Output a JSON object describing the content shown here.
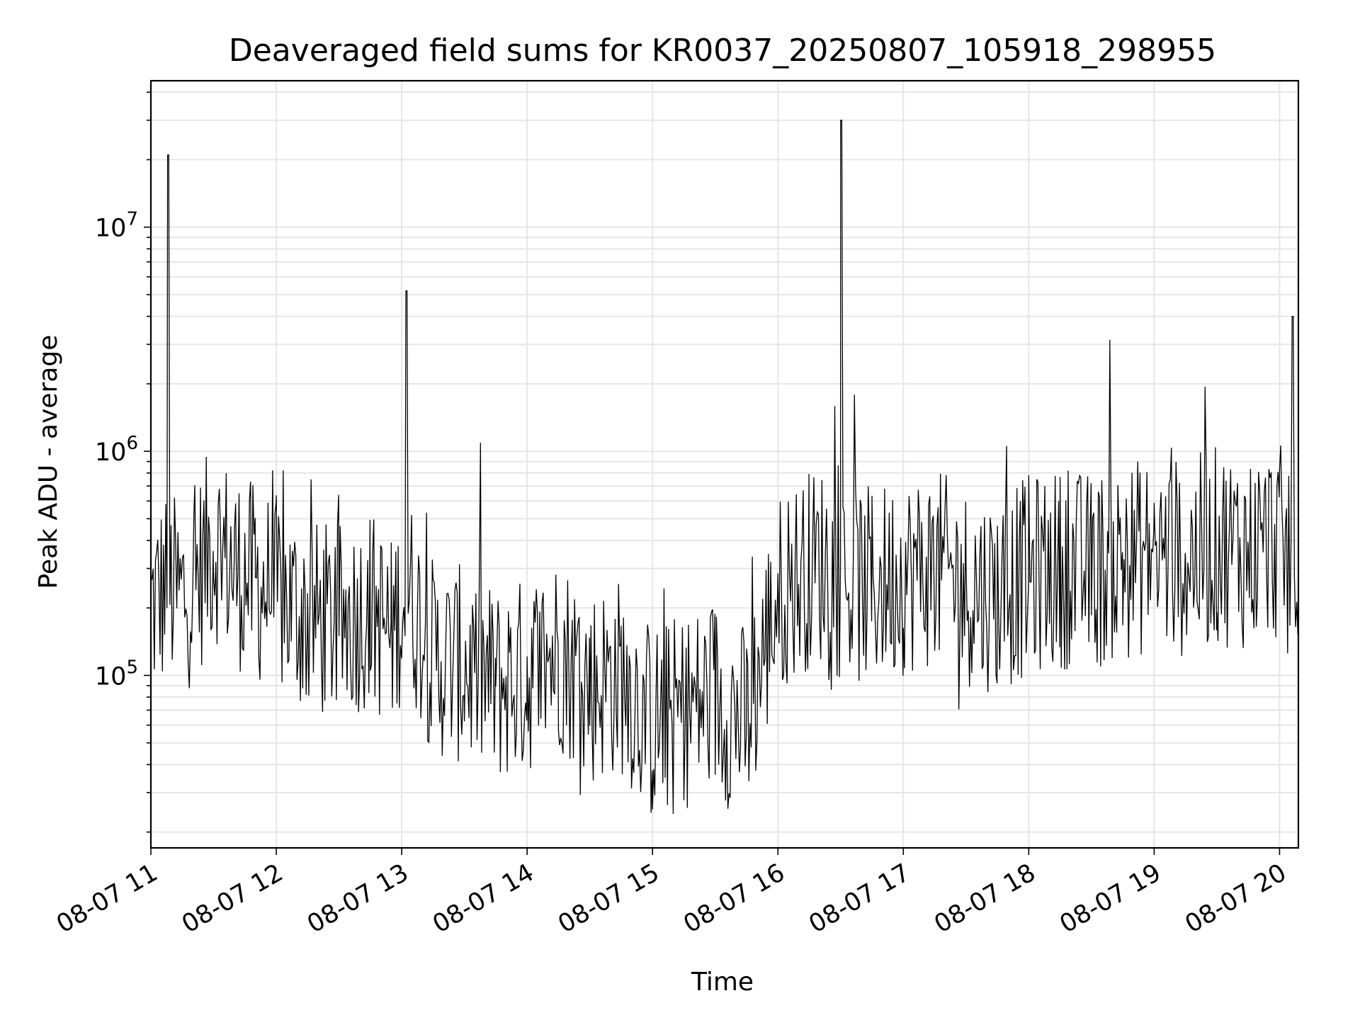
{
  "chart_data": {
    "type": "line",
    "title": "Deaveraged field sums for KR0037_20250807_105918_298955",
    "xlabel": "Time",
    "ylabel": "Peak ADU - average",
    "yscale": "log",
    "ylim": [
      17000,
      45000000
    ],
    "xlim": [
      "2025-08-07 11:00",
      "2025-08-07 20:09"
    ],
    "grid": true,
    "x_tick_labels": [
      "08-07 11",
      "08-07 12",
      "08-07 13",
      "08-07 14",
      "08-07 15",
      "08-07 16",
      "08-07 17",
      "08-07 18",
      "08-07 19",
      "08-07 20"
    ],
    "y_tick_labels": [
      {
        "base": "10",
        "exp": "5",
        "value": 100000
      },
      {
        "base": "10",
        "exp": "6",
        "value": 1000000
      },
      {
        "base": "10",
        "exp": "7",
        "value": 10000000
      }
    ],
    "line_color": "#000000",
    "grid_color": "#e6e6e6",
    "series": [
      {
        "x": [
          "2025-08-07 11:00",
          "2025-08-07 11:08",
          "2025-08-07 11:14",
          "2025-08-07 11:21",
          "2025-08-07 11:30",
          "2025-08-07 11:40",
          "2025-08-07 11:50",
          "2025-08-07 12:00",
          "2025-08-07 12:15",
          "2025-08-07 12:30",
          "2025-08-07 12:45",
          "2025-08-07 12:55",
          "2025-08-07 13:02",
          "2025-08-07 13:15",
          "2025-08-07 13:30",
          "2025-08-07 13:45",
          "2025-08-07 14:00",
          "2025-08-07 14:15",
          "2025-08-07 14:30",
          "2025-08-07 14:45",
          "2025-08-07 15:00",
          "2025-08-07 15:15",
          "2025-08-07 15:30",
          "2025-08-07 15:45",
          "2025-08-07 16:00",
          "2025-08-07 16:15",
          "2025-08-07 16:25",
          "2025-08-07 16:30",
          "2025-08-07 16:45",
          "2025-08-07 17:00",
          "2025-08-07 17:15",
          "2025-08-07 17:30",
          "2025-08-07 17:45",
          "2025-08-07 18:00",
          "2025-08-07 18:15",
          "2025-08-07 18:30",
          "2025-08-07 18:45",
          "2025-08-07 19:00",
          "2025-08-07 19:15",
          "2025-08-07 19:30",
          "2025-08-07 19:45",
          "2025-08-07 20:00",
          "2025-08-07 20:06",
          "2025-08-07 20:09"
        ],
        "y": [
          200000,
          21000000,
          220000,
          260000,
          400000,
          300000,
          260000,
          230000,
          180000,
          170000,
          200000,
          150000,
          5200000,
          120000,
          110000,
          90000,
          100000,
          130000,
          90000,
          100000,
          60000,
          70000,
          80000,
          60000,
          230000,
          300000,
          320000,
          30000000,
          250000,
          280000,
          300000,
          250000,
          230000,
          280000,
          300000,
          290000,
          320000,
          350000,
          330000,
          380000,
          360000,
          400000,
          4000000,
          300000
        ]
      }
    ]
  }
}
